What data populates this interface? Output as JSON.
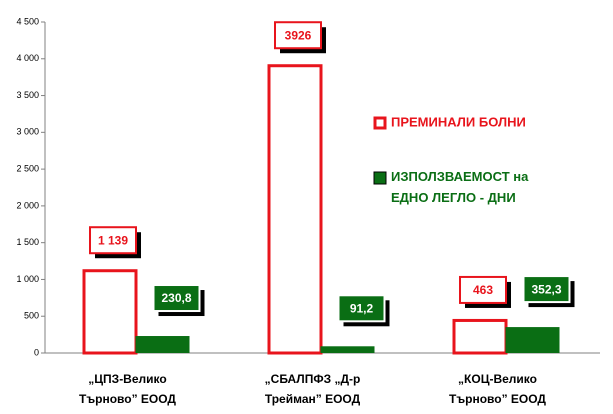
{
  "chart_data": {
    "type": "bar",
    "categories": [
      "„ЦПЗ-Велико\nТърново” ЕООД",
      "„СБАЛПФЗ „Д-р\nТрейман” ЕООД",
      "„КОЦ-Велико\nТърново” ЕООД"
    ],
    "series": [
      {
        "name": "ПРЕМИНАЛИ БОЛНИ",
        "color": "#e8141c",
        "values": [
          1139,
          3926,
          463
        ],
        "value_labels": [
          "1 139",
          "3926",
          "463"
        ]
      },
      {
        "name": "ИЗПОЛЗВАЕМОСТ на\nЕДНО ЛЕГЛО - ДНИ",
        "color": "#0a6e14",
        "values": [
          230.8,
          91.2,
          352.3
        ],
        "value_labels": [
          "230,8",
          "91,2",
          "352,3"
        ]
      }
    ],
    "ylim": [
      0,
      4500
    ],
    "yticks": [
      0,
      500,
      {
        "value": 1000,
        "label": "1 000"
      },
      {
        "value": 1500,
        "label": "1 500"
      },
      {
        "value": 2000,
        "label": "2 000"
      },
      {
        "value": 2500,
        "label": "2 500"
      },
      {
        "value": 3000,
        "label": "3 000"
      },
      {
        "value": 3500,
        "label": "3 500"
      },
      {
        "value": 4000,
        "label": "4 000"
      },
      {
        "value": 4500,
        "label": "4 500"
      }
    ],
    "grid": false
  }
}
